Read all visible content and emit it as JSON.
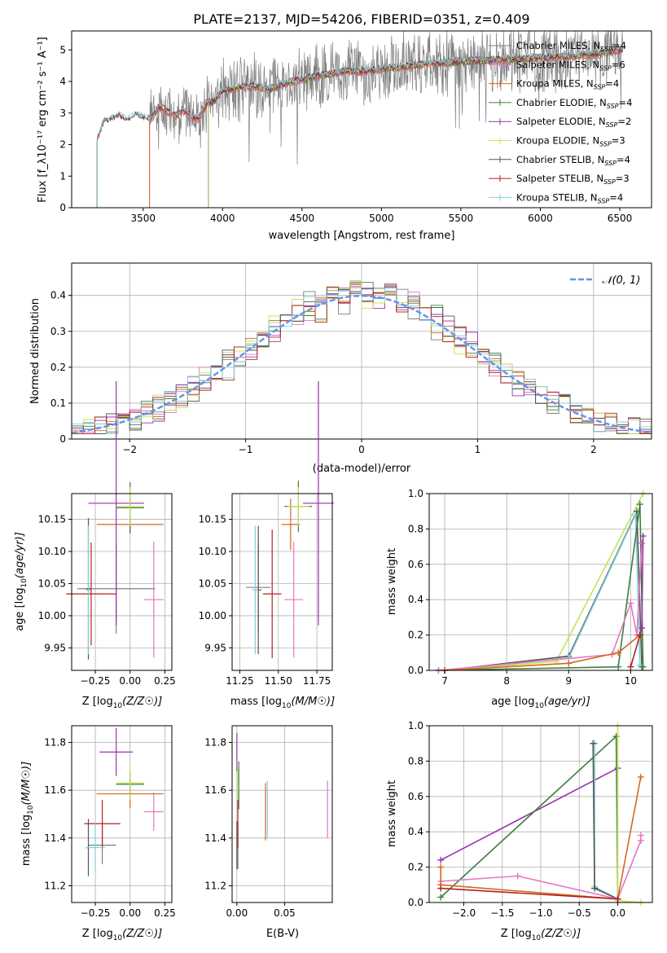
{
  "title": "PLATE=2137, MJD=54206, FIBERID=0351, z=0.409",
  "colors": {
    "chabrier_miles": "#7f7f7f",
    "salpeter_miles": "#e377c2",
    "kroupa_miles": "#d2691e",
    "chabrier_elodie": "#3c7f3c",
    "salpeter_elodie": "#9b30b0",
    "kroupa_elodie": "#c8e05a",
    "chabrier_stelib": "#555555",
    "salpeter_stelib": "#b22222",
    "kroupa_stelib": "#80d0d8",
    "gaussian": "#6495ed"
  },
  "chart_data": [
    {
      "id": "spectrum",
      "type": "line",
      "xlabel": "wavelength [Angstrom, rest frame]",
      "ylabel": "Flux [f_λ10⁻¹⁷ erg cm⁻² s⁻¹ A⁻¹]",
      "xlim": [
        3050,
        6700
      ],
      "ylim": [
        0,
        5.6
      ],
      "xticks": [
        3500,
        4000,
        4500,
        5000,
        5500,
        6000,
        6500
      ],
      "yticks": [
        0,
        1,
        2,
        3,
        4,
        5
      ],
      "grid": false,
      "legend_placement": "upper-right",
      "model_template": {
        "x": [
          3210,
          3250,
          3300,
          3350,
          3400,
          3450,
          3500,
          3550,
          3600,
          3650,
          3700,
          3750,
          3800,
          3850,
          3900,
          3950,
          4000,
          4100,
          4200,
          4300,
          4400,
          4500,
          4600,
          4700,
          4800,
          4900,
          5000,
          5200,
          5400,
          5600,
          5800,
          6000,
          6200,
          6400,
          6520
        ],
        "y": [
          2.1,
          2.7,
          2.8,
          2.9,
          2.75,
          2.95,
          2.85,
          2.8,
          3.2,
          3.05,
          2.9,
          3.1,
          2.9,
          2.8,
          3.3,
          3.4,
          3.7,
          3.8,
          3.85,
          3.75,
          3.95,
          4.05,
          4.2,
          4.25,
          4.35,
          4.3,
          4.4,
          4.5,
          4.6,
          4.65,
          4.7,
          4.75,
          4.8,
          4.9,
          5.0
        ]
      },
      "series": [
        {
          "name": "Chabrier MILES, N_SSP=4",
          "label_main": "Chabrier MILES, N",
          "label_sub": "SSP",
          "label_end": "=4",
          "color_key": "chabrier_miles",
          "x_start": 3540
        },
        {
          "name": "Salpeter MILES, N_SSP=6",
          "label_main": "Salpeter MILES, N",
          "label_sub": "SSP",
          "label_end": "=6",
          "color_key": "salpeter_miles",
          "x_start": 3540
        },
        {
          "name": "Kroupa MILES, N_SSP=4",
          "label_main": "Kroupa MILES, N",
          "label_sub": "SSP",
          "label_end": "=4",
          "color_key": "kroupa_miles",
          "x_start": 3540
        },
        {
          "name": "Chabrier ELODIE, N_SSP=4",
          "label_main": "Chabrier ELODIE, N",
          "label_sub": "SSP",
          "label_end": "=4",
          "color_key": "chabrier_elodie",
          "x_start": 3910
        },
        {
          "name": "Salpeter ELODIE, N_SSP=2",
          "label_main": "Salpeter ELODIE, N",
          "label_sub": "SSP",
          "label_end": "=2",
          "color_key": "salpeter_elodie",
          "x_start": 3910
        },
        {
          "name": "Kroupa ELODIE, N_SSP=3",
          "label_main": "Kroupa ELODIE, N",
          "label_sub": "SSP",
          "label_end": "=3",
          "color_key": "kroupa_elodie",
          "x_start": 3910
        },
        {
          "name": "Chabrier STELIB, N_SSP=4",
          "label_main": "Chabrier STELIB, N",
          "label_sub": "SSP",
          "label_end": "=4",
          "color_key": "chabrier_stelib",
          "x_start": 3210
        },
        {
          "name": "Salpeter STELIB, N_SSP=3",
          "label_main": "Salpeter STELIB, N",
          "label_sub": "SSP",
          "label_end": "=3",
          "color_key": "salpeter_stelib",
          "x_start": 3210
        },
        {
          "name": "Kroupa STELIB, N_SSP=4",
          "label_main": "Kroupa STELIB, N",
          "label_sub": "SSP",
          "label_end": "=4",
          "color_key": "kroupa_stelib",
          "x_start": 3210
        }
      ],
      "observed": {
        "color_key": "chabrier_miles",
        "x_start": 3540,
        "x_end": 6520
      }
    },
    {
      "id": "residuals",
      "type": "histogram",
      "xlabel": "(data-model)/error",
      "ylabel": "Normed distribution",
      "xlim": [
        -2.5,
        2.5
      ],
      "ylim": [
        0,
        0.49
      ],
      "xticks": [
        -2,
        -1,
        0,
        1,
        2
      ],
      "yticks": [
        0.0,
        0.1,
        0.2,
        0.3,
        0.4
      ],
      "grid": true,
      "legend_placement": "upper-right",
      "legend": [
        "𝒩(0, 1)"
      ],
      "bin_width": 0.1
    },
    {
      "id": "age-vs-Z",
      "type": "errorbar",
      "xlabel_main": "Z [log",
      "xlabel_sub": "10",
      "xlabel_rest": "(Z/Z☉)]",
      "ylabel_main": "age  [log",
      "ylabel_sub": "10",
      "ylabel_rest": "(age/yr)]",
      "xlim": [
        -0.42,
        0.3
      ],
      "ylim": [
        9.915,
        10.19
      ],
      "xticks": [
        -0.25,
        0.0,
        0.25
      ],
      "xtick_labels": [
        "−0.25",
        "0.00",
        "0.25"
      ],
      "yticks": [
        9.95,
        10.0,
        10.05,
        10.1,
        10.15
      ],
      "ytick_labels": [
        "9.95",
        "10.00",
        "10.05",
        "10.10",
        "10.15"
      ],
      "grid": true,
      "points": [
        {
          "x": -0.1,
          "y": 10.042,
          "xerr": 0.28,
          "yerr": 0.07,
          "color_key": "chabrier_miles"
        },
        {
          "x": 0.17,
          "y": 10.025,
          "xerr": 0.07,
          "yerr": 0.09,
          "color_key": "salpeter_miles"
        },
        {
          "x": 0.0,
          "y": 10.142,
          "xerr": 0.24,
          "yerr": 0.012,
          "color_key": "kroupa_miles"
        },
        {
          "x": 0.0,
          "y": 10.168,
          "xerr": 0.1,
          "yerr": 0.04,
          "color_key": "chabrier_elodie"
        },
        {
          "x": -0.1,
          "y": 10.175,
          "xerr": 0.2,
          "yerr": 0.19,
          "color_key": "salpeter_elodie"
        },
        {
          "x": 0.0,
          "y": 10.17,
          "xerr": 0.1,
          "yerr": 0.03,
          "color_key": "kroupa_elodie"
        },
        {
          "x": -0.3,
          "y": 10.042,
          "xerr": 0.02,
          "yerr": 0.11,
          "color_key": "chabrier_stelib"
        },
        {
          "x": -0.28,
          "y": 10.034,
          "xerr": 0.18,
          "yerr": 0.08,
          "color_key": "salpeter_stelib"
        },
        {
          "x": -0.3,
          "y": 10.04,
          "xerr": 0.015,
          "yerr": 0.1,
          "color_key": "kroupa_stelib"
        }
      ]
    },
    {
      "id": "age-vs-mass",
      "type": "errorbar",
      "xlabel_main": "mass [log",
      "xlabel_sub": "10",
      "xlabel_rest": "(M/M☉)]",
      "xlim": [
        11.2,
        11.85
      ],
      "ylim": [
        9.915,
        10.19
      ],
      "xticks": [
        11.25,
        11.5,
        11.75
      ],
      "xtick_labels": [
        "11.25",
        "11.50",
        "11.75"
      ],
      "yticks": [
        9.95,
        10.0,
        10.05,
        10.1,
        10.15
      ],
      "ytick_labels": [
        "9.95",
        "10.00",
        "10.05",
        "10.10",
        "10.15"
      ],
      "grid": true,
      "points": [
        {
          "x": 11.37,
          "y": 10.044,
          "xerr": 0.08,
          "yerr": 0.07,
          "color_key": "chabrier_miles"
        },
        {
          "x": 11.6,
          "y": 10.025,
          "xerr": 0.06,
          "yerr": 0.09,
          "color_key": "salpeter_miles"
        },
        {
          "x": 11.58,
          "y": 10.142,
          "xerr": 0.06,
          "yerr": 0.04,
          "color_key": "kroupa_miles"
        },
        {
          "x": 11.63,
          "y": 10.17,
          "xerr": 0.09,
          "yerr": 0.04,
          "color_key": "chabrier_elodie"
        },
        {
          "x": 11.76,
          "y": 10.175,
          "xerr": 0.1,
          "yerr": 0.19,
          "color_key": "salpeter_elodie"
        },
        {
          "x": 11.63,
          "y": 10.17,
          "xerr": 0.07,
          "yerr": 0.03,
          "color_key": "kroupa_elodie"
        },
        {
          "x": 11.37,
          "y": 10.04,
          "xerr": 0.02,
          "yerr": 0.1,
          "color_key": "chabrier_stelib"
        },
        {
          "x": 11.46,
          "y": 10.034,
          "xerr": 0.06,
          "yerr": 0.1,
          "color_key": "salpeter_stelib"
        },
        {
          "x": 11.35,
          "y": 10.04,
          "xerr": 0.02,
          "yerr": 0.1,
          "color_key": "kroupa_stelib"
        }
      ]
    },
    {
      "id": "weight-vs-age",
      "type": "line",
      "xlabel_main": "age  [log",
      "xlabel_sub": "10",
      "xlabel_rest": "(age/yr)]",
      "ylabel": "mass weight",
      "xlim": [
        6.75,
        10.35
      ],
      "ylim": [
        0,
        1
      ],
      "xticks": [
        7,
        8,
        9,
        10
      ],
      "xtick_labels": [
        "7",
        "8",
        "9",
        "10"
      ],
      "yticks": [
        0.0,
        0.2,
        0.4,
        0.6,
        0.8,
        1.0
      ],
      "ytick_labels": [
        "0.0",
        "0.2",
        "0.4",
        "0.6",
        "0.8",
        "1.0"
      ],
      "grid": true,
      "series": [
        {
          "color_key": "kroupa_elodie",
          "x": [
            7.0,
            8.8,
            10.2
          ],
          "y": [
            0.0,
            0.05,
            1.0
          ]
        },
        {
          "color_key": "chabrier_stelib",
          "x": [
            7.0,
            9.0,
            10.1,
            10.18
          ],
          "y": [
            0.0,
            0.08,
            0.9,
            0.02
          ]
        },
        {
          "color_key": "kroupa_stelib",
          "x": [
            7.0,
            9.0,
            10.08,
            10.15
          ],
          "y": [
            0.0,
            0.07,
            0.88,
            0.03
          ]
        },
        {
          "color_key": "chabrier_elodie",
          "x": [
            6.9,
            9.8,
            10.15,
            10.2
          ],
          "y": [
            0.0,
            0.02,
            0.94,
            0.02
          ]
        },
        {
          "color_key": "salpeter_miles",
          "x": [
            6.9,
            9.7,
            10.0,
            10.1,
            10.18
          ],
          "y": [
            0.0,
            0.09,
            0.38,
            0.2,
            0.72
          ]
        },
        {
          "color_key": "salpeter_elodie",
          "x": [
            10.18,
            10.2
          ],
          "y": [
            0.24,
            0.76
          ]
        },
        {
          "color_key": "kroupa_miles",
          "x": [
            7.0,
            9.0,
            9.8,
            10.15
          ],
          "y": [
            0.0,
            0.04,
            0.1,
            0.2
          ]
        },
        {
          "color_key": "salpeter_stelib",
          "x": [
            10.0,
            10.15
          ],
          "y": [
            0.02,
            0.2
          ]
        }
      ]
    },
    {
      "id": "mass-vs-Z",
      "type": "errorbar",
      "xlabel_main": "Z [log",
      "xlabel_sub": "10",
      "xlabel_rest": "(Z/Z☉)]",
      "ylabel_main": "mass [log",
      "ylabel_sub": "10",
      "ylabel_rest": "(M/M☉)]",
      "xlim": [
        -0.42,
        0.3
      ],
      "ylim": [
        11.13,
        11.87
      ],
      "xticks": [
        -0.25,
        0.0,
        0.25
      ],
      "xtick_labels": [
        "−0.25",
        "0.00",
        "0.25"
      ],
      "yticks": [
        11.2,
        11.4,
        11.6,
        11.8
      ],
      "ytick_labels": [
        "11.2",
        "11.4",
        "11.6",
        "11.8"
      ],
      "grid": true,
      "points": [
        {
          "x": -0.2,
          "y": 11.37,
          "xerr": 0.1,
          "yerr": 0.08,
          "color_key": "chabrier_miles"
        },
        {
          "x": 0.17,
          "y": 11.51,
          "xerr": 0.07,
          "yerr": 0.08,
          "color_key": "salpeter_miles"
        },
        {
          "x": 0.0,
          "y": 11.585,
          "xerr": 0.24,
          "yerr": 0.06,
          "color_key": "kroupa_miles"
        },
        {
          "x": 0.0,
          "y": 11.625,
          "xerr": 0.1,
          "yerr": 0.05,
          "color_key": "chabrier_elodie"
        },
        {
          "x": -0.1,
          "y": 11.76,
          "xerr": 0.12,
          "yerr": 0.1,
          "color_key": "salpeter_elodie"
        },
        {
          "x": 0.0,
          "y": 11.63,
          "xerr": 0.1,
          "yerr": 0.07,
          "color_key": "kroupa_elodie"
        },
        {
          "x": -0.3,
          "y": 11.36,
          "xerr": 0.02,
          "yerr": 0.12,
          "color_key": "chabrier_stelib"
        },
        {
          "x": -0.2,
          "y": 11.46,
          "xerr": 0.13,
          "yerr": 0.1,
          "color_key": "salpeter_stelib"
        },
        {
          "x": -0.25,
          "y": 11.36,
          "xerr": 0.07,
          "yerr": 0.1,
          "color_key": "kroupa_stelib"
        }
      ]
    },
    {
      "id": "mass-vs-ebv",
      "type": "errorbar",
      "xlabel": "E(B-V)",
      "xlim": [
        -0.005,
        0.1
      ],
      "ylim": [
        11.13,
        11.87
      ],
      "xticks": [
        0.0,
        0.05
      ],
      "xtick_labels": [
        "0.00",
        "0.05"
      ],
      "yticks": [
        11.2,
        11.4,
        11.6,
        11.8
      ],
      "ytick_labels": [
        "11.2",
        "11.4",
        "11.6",
        "11.8"
      ],
      "grid": true,
      "points": [
        {
          "x": 0.001,
          "y": 11.37,
          "xerr": 0,
          "yerr": 0.1,
          "color_key": "chabrier_miles"
        },
        {
          "x": 0.095,
          "y": 11.52,
          "xerr": 0,
          "yerr": 0.12,
          "color_key": "salpeter_miles"
        },
        {
          "x": 0.03,
          "y": 11.51,
          "xerr": 0,
          "yerr": 0.12,
          "color_key": "kroupa_miles"
        },
        {
          "x": 0.002,
          "y": 11.62,
          "xerr": 0,
          "yerr": 0.1,
          "color_key": "chabrier_elodie"
        },
        {
          "x": 0.0,
          "y": 11.76,
          "xerr": 0,
          "yerr": 0.08,
          "color_key": "salpeter_elodie"
        },
        {
          "x": 0.001,
          "y": 11.62,
          "xerr": 0,
          "yerr": 0.07,
          "color_key": "kroupa_elodie"
        },
        {
          "x": 0.0,
          "y": 11.37,
          "xerr": 0,
          "yerr": 0.1,
          "color_key": "chabrier_stelib"
        },
        {
          "x": 0.001,
          "y": 11.46,
          "xerr": 0,
          "yerr": 0.1,
          "color_key": "salpeter_stelib"
        },
        {
          "x": 0.032,
          "y": 11.52,
          "xerr": 0,
          "yerr": 0.12,
          "color_key": "kroupa_stelib"
        }
      ]
    },
    {
      "id": "weight-vs-Z",
      "type": "line",
      "xlabel_main": "Z [log",
      "xlabel_sub": "10",
      "xlabel_rest": "(Z/Z☉)]",
      "ylabel": "mass weight",
      "xlim": [
        -2.45,
        0.45
      ],
      "ylim": [
        0,
        1
      ],
      "xticks": [
        -2.0,
        -1.5,
        -1.0,
        -0.5,
        0.0
      ],
      "xtick_labels": [
        "−2.0",
        "−1.5",
        "−1.0",
        "−0.5",
        "0.0"
      ],
      "yticks": [
        0.0,
        0.2,
        0.4,
        0.6,
        0.8,
        1.0
      ],
      "ytick_labels": [
        "0.0",
        "0.2",
        "0.4",
        "0.6",
        "0.8",
        "1.0"
      ],
      "grid": true,
      "series": [
        {
          "color_key": "salpeter_elodie",
          "x": [
            -2.3,
            0.0
          ],
          "y": [
            0.24,
            0.76
          ]
        },
        {
          "color_key": "chabrier_elodie",
          "x": [
            -2.3,
            -0.02,
            0.0
          ],
          "y": [
            0.03,
            0.94,
            0.02
          ]
        },
        {
          "color_key": "kroupa_elodie",
          "x": [
            0.0,
            0.0,
            0.3
          ],
          "y": [
            1.0,
            0.01,
            0.0
          ]
        },
        {
          "color_key": "kroupa_stelib",
          "x": [
            -0.3,
            -0.3,
            0.0
          ],
          "y": [
            0.9,
            0.09,
            0.02
          ]
        },
        {
          "color_key": "chabrier_stelib",
          "x": [
            -0.32,
            -0.3,
            0.0
          ],
          "y": [
            0.9,
            0.08,
            0.02
          ]
        },
        {
          "color_key": "salpeter_miles",
          "x": [
            -2.3,
            -1.3,
            0.0,
            0.3,
            0.3
          ],
          "y": [
            0.12,
            0.15,
            0.02,
            0.35,
            0.38
          ]
        },
        {
          "color_key": "kroupa_miles",
          "x": [
            -2.3,
            -2.3,
            0.0,
            0.3
          ],
          "y": [
            0.2,
            0.1,
            0.02,
            0.71
          ]
        },
        {
          "color_key": "salpeter_stelib",
          "x": [
            -2.3,
            0.0
          ],
          "y": [
            0.08,
            0.02
          ]
        }
      ]
    }
  ]
}
